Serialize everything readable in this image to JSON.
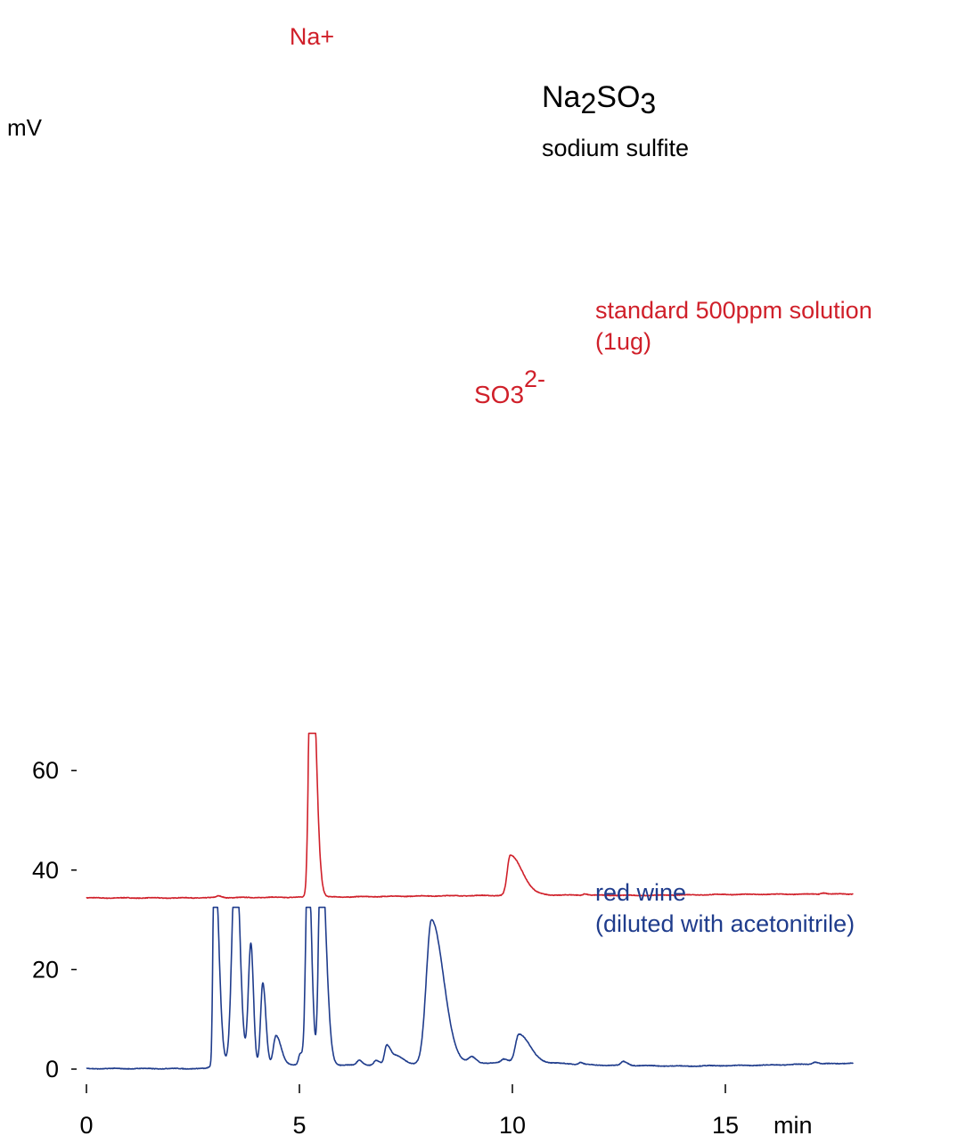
{
  "chart_data": {
    "type": "line",
    "title": "Na2SO3",
    "title_formula": {
      "pre": "Na",
      "sub1": "2",
      "mid": "SO",
      "sub2": "3"
    },
    "subtitle": "sodium sulfite",
    "xlabel": "min",
    "ylabel": "mV",
    "xlim": [
      0,
      18
    ],
    "ylim": [
      0,
      68
    ],
    "x_ticks": [
      0,
      5,
      10,
      15
    ],
    "x_tick_labels": [
      "0",
      "5",
      "10",
      "15"
    ],
    "y_ticks": [
      0,
      20,
      40,
      60
    ],
    "y_tick_labels": [
      "0",
      "20",
      "40",
      "60"
    ],
    "grid": false,
    "colors": {
      "standard": "#d0202a",
      "wine": "#1f3c8c",
      "axis": "#000000"
    },
    "series": [
      {
        "name": "standard 500ppm solution",
        "name_line2": "(1ug)",
        "color": "#d0202a",
        "clip_y": 67.5,
        "baseline": [
          [
            0,
            34.4
          ],
          [
            2,
            34.4
          ],
          [
            4,
            34.5
          ],
          [
            6,
            34.6
          ],
          [
            8,
            34.8
          ],
          [
            9.6,
            34.9
          ],
          [
            10.8,
            35.0
          ],
          [
            13,
            34.9
          ],
          [
            15,
            35.1
          ],
          [
            18,
            35.2
          ]
        ],
        "peaks": [
          {
            "t": 5.27,
            "h": 58.0,
            "wl": 0.05,
            "wr": 0.11
          },
          {
            "t": 9.95,
            "h": 8.0,
            "wl": 0.07,
            "wr": 0.28
          },
          {
            "t": 3.1,
            "h": 0.35,
            "wl": 0.05,
            "wr": 0.08
          },
          {
            "t": 11.7,
            "h": 0.3,
            "wl": 0.04,
            "wr": 0.06
          },
          {
            "t": 17.3,
            "h": 0.25,
            "wl": 0.05,
            "wr": 0.07
          }
        ],
        "annotations": [
          {
            "label": "Na+",
            "x": 5.27
          },
          {
            "label": "SO3",
            "sup": "2-",
            "x": 9.95
          }
        ]
      },
      {
        "name": "red wine",
        "name_line2": "(diluted with acetonitrile)",
        "color": "#1f3c8c",
        "clip_y": 32.5,
        "baseline": [
          [
            0,
            0.1
          ],
          [
            2.8,
            0.1
          ],
          [
            3.0,
            0.8
          ],
          [
            6.5,
            0.8
          ],
          [
            8,
            1.0
          ],
          [
            10.5,
            1.4
          ],
          [
            12,
            0.8
          ],
          [
            14,
            0.6
          ],
          [
            16,
            0.8
          ],
          [
            18,
            1.2
          ]
        ],
        "peaks": [
          {
            "t": 3.0,
            "h": 45.0,
            "wl": 0.03,
            "wr": 0.1
          },
          {
            "t": 3.5,
            "h": 45.0,
            "wl": 0.08,
            "wr": 0.1
          },
          {
            "t": 3.86,
            "h": 24.5,
            "wl": 0.06,
            "wr": 0.06
          },
          {
            "t": 4.14,
            "h": 16.5,
            "wl": 0.05,
            "wr": 0.07
          },
          {
            "t": 4.45,
            "h": 6.0,
            "wl": 0.06,
            "wr": 0.12
          },
          {
            "t": 5.02,
            "h": 2.3,
            "wl": 0.04,
            "wr": 0.06
          },
          {
            "t": 5.2,
            "h": 45.0,
            "wl": 0.05,
            "wr": 0.08
          },
          {
            "t": 5.5,
            "h": 45.0,
            "wl": 0.05,
            "wr": 0.12
          },
          {
            "t": 6.4,
            "h": 1.0,
            "wl": 0.05,
            "wr": 0.08
          },
          {
            "t": 6.8,
            "h": 0.9,
            "wl": 0.05,
            "wr": 0.08
          },
          {
            "t": 7.05,
            "h": 3.9,
            "wl": 0.05,
            "wr": 0.1
          },
          {
            "t": 7.3,
            "h": 1.7,
            "wl": 0.1,
            "wr": 0.15
          },
          {
            "t": 8.1,
            "h": 29.0,
            "wl": 0.12,
            "wr": 0.28
          },
          {
            "t": 9.05,
            "h": 1.2,
            "wl": 0.08,
            "wr": 0.1
          },
          {
            "t": 9.8,
            "h": 0.7,
            "wl": 0.06,
            "wr": 0.1
          },
          {
            "t": 10.15,
            "h": 5.7,
            "wl": 0.08,
            "wr": 0.25
          },
          {
            "t": 11.6,
            "h": 0.4,
            "wl": 0.04,
            "wr": 0.06
          },
          {
            "t": 12.6,
            "h": 0.8,
            "wl": 0.05,
            "wr": 0.1
          },
          {
            "t": 17.1,
            "h": 0.4,
            "wl": 0.05,
            "wr": 0.08
          }
        ]
      }
    ]
  }
}
